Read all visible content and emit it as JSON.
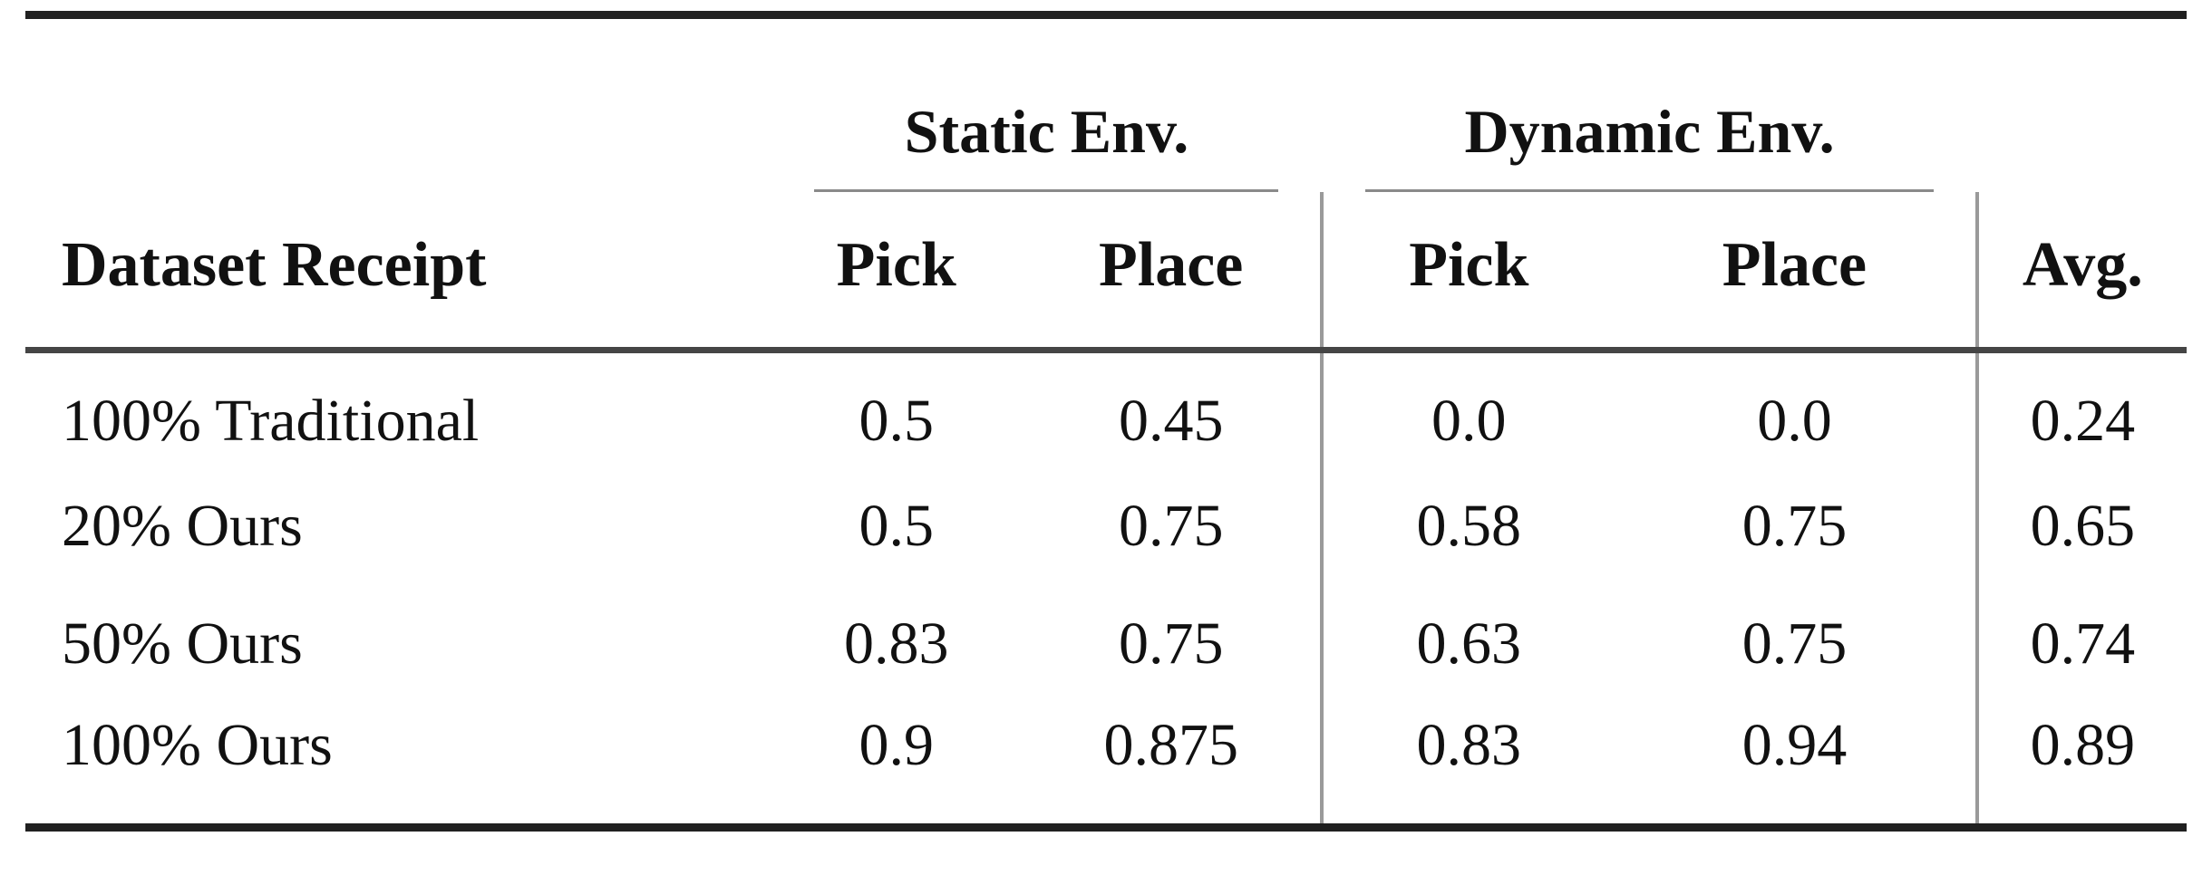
{
  "table": {
    "group_headers": [
      {
        "label": "Static Env."
      },
      {
        "label": "Dynamic Env."
      }
    ],
    "columns": {
      "dataset": "Dataset Receipt",
      "static_pick": "Pick",
      "static_place": "Place",
      "dynamic_pick": "Pick",
      "dynamic_place": "Place",
      "avg": "Avg."
    },
    "rows": [
      {
        "label": "100% Traditional",
        "static_pick": "0.5",
        "static_place": "0.45",
        "dynamic_pick": "0.0",
        "dynamic_place": "0.0",
        "avg": "0.24"
      },
      {
        "label": "20% Ours",
        "static_pick": "0.5",
        "static_place": "0.75",
        "dynamic_pick": "0.58",
        "dynamic_place": "0.75",
        "avg": "0.65"
      },
      {
        "label": "50% Ours",
        "static_pick": "0.83",
        "static_place": "0.75",
        "dynamic_pick": "0.63",
        "dynamic_place": "0.75",
        "avg": "0.74"
      },
      {
        "label": "100% Ours",
        "static_pick": "0.9",
        "static_place": "0.875",
        "dynamic_pick": "0.83",
        "dynamic_place": "0.94",
        "avg": "0.89"
      }
    ],
    "colors": {
      "text": "#111111",
      "heavy_rule": "#202020",
      "mid_rule": "#454545",
      "light_rule": "#8a8a8a",
      "vertical_rule": "#9a9a9a",
      "background": "#ffffff"
    }
  }
}
